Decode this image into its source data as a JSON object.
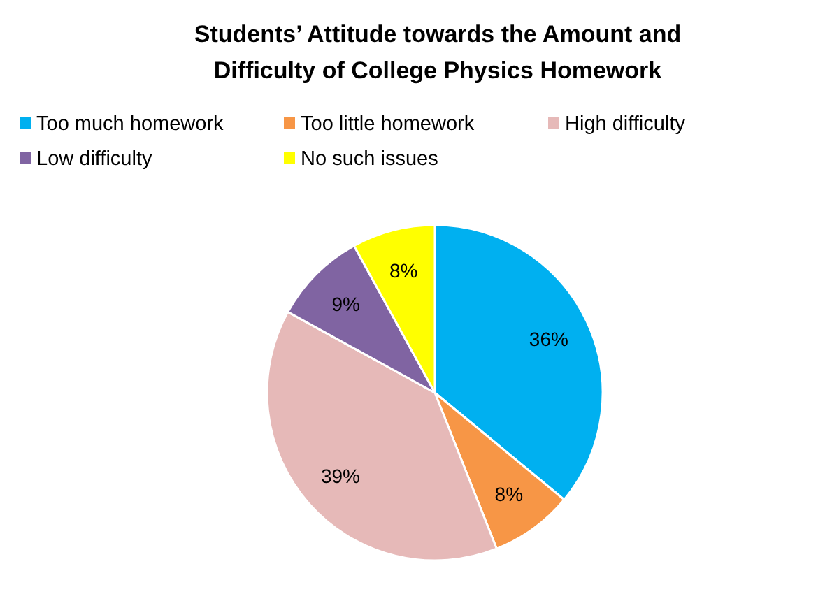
{
  "chart_data": {
    "type": "pie",
    "title": "Students’ Attitude towards the Amount and Difficulty of College Physics Homework",
    "categories": [
      "Too much homework",
      "Too little homework",
      "High difficulty",
      "Low difficulty",
      "No such issues"
    ],
    "values": [
      36,
      8,
      39,
      9,
      8
    ],
    "colors": [
      "#00b0f0",
      "#f79646",
      "#e6b9b8",
      "#8064a2",
      "#ffff00"
    ],
    "value_labels": [
      "36%",
      "8%",
      "39%",
      "9%",
      "8%"
    ],
    "legend": "top"
  }
}
